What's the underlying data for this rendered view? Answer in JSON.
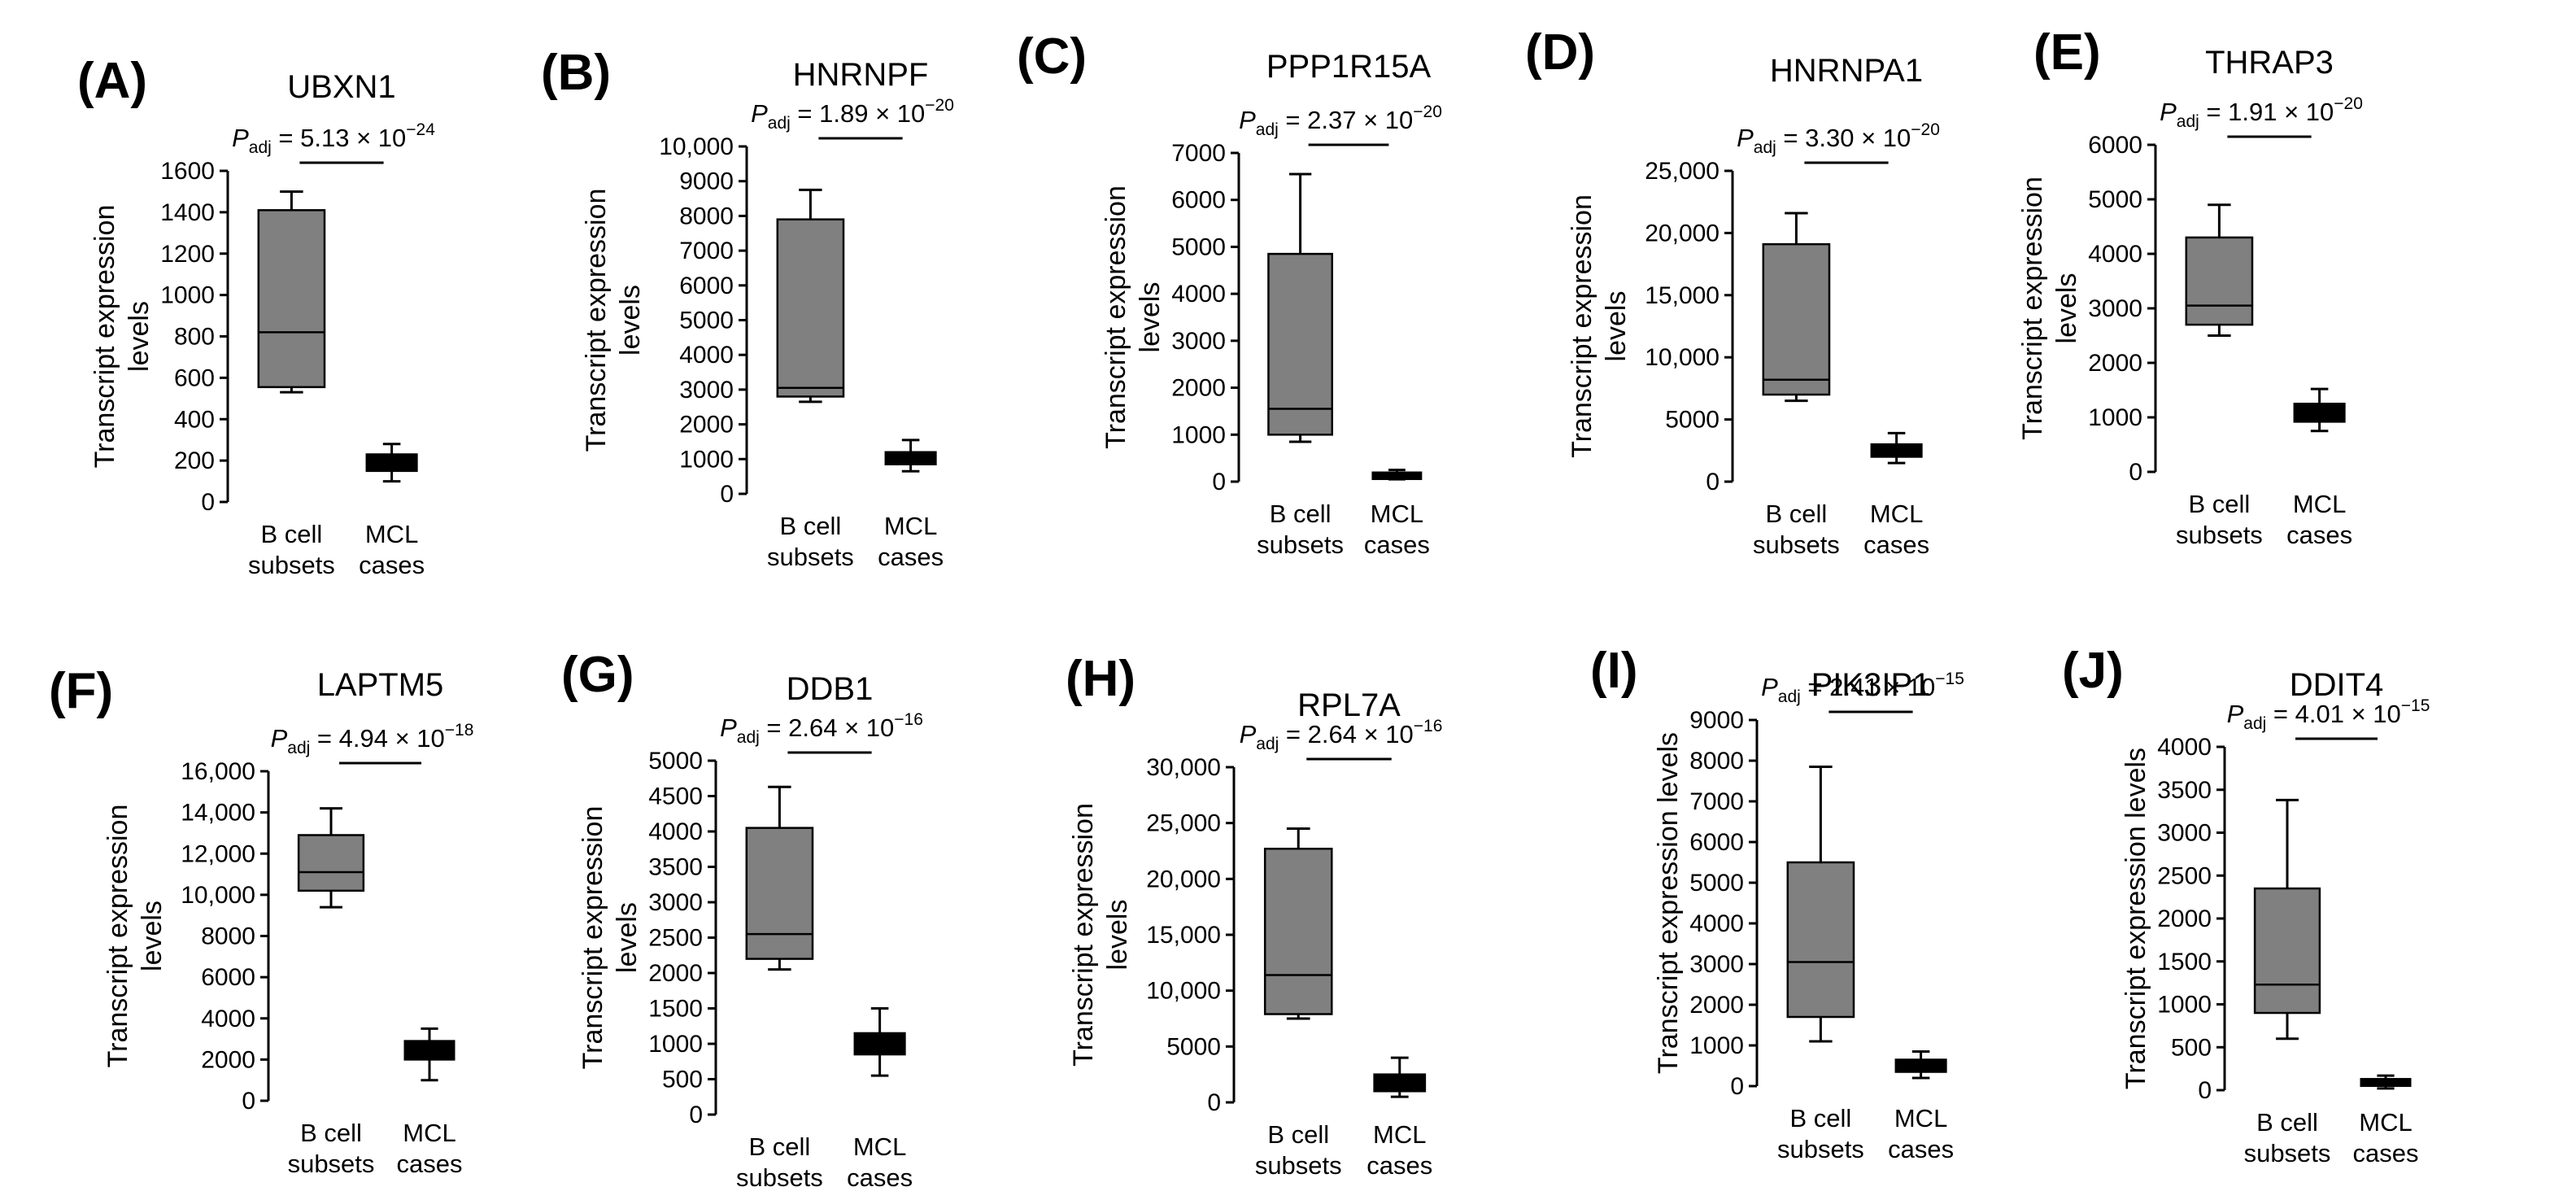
{
  "figure": {
    "ylabel_line1": "Transcript expression",
    "ylabel_line2": "levels",
    "categories": [
      [
        "B cell",
        "subsets"
      ],
      [
        "MCL",
        "cases"
      ]
    ],
    "box_colors": [
      "#808080",
      "#000000"
    ]
  },
  "chart_data": [
    {
      "type": "box",
      "panel": "(A)",
      "title": "UBXN1",
      "p_adj": "5.13 × 10−24",
      "ylim": [
        0,
        1600
      ],
      "yticks": [
        "0",
        "200",
        "400",
        "600",
        "800",
        "1000",
        "1200",
        "1400",
        "1600"
      ],
      "ylabel_lines": 2,
      "series": [
        {
          "name": "B cell subsets",
          "min": 530,
          "q1": 555,
          "median": 820,
          "q3": 1410,
          "max": 1500
        },
        {
          "name": "MCL cases",
          "min": 100,
          "q1": 150,
          "median": 190,
          "q3": 230,
          "max": 280
        }
      ]
    },
    {
      "type": "box",
      "panel": "(B)",
      "title": "HNRNPF",
      "p_adj": "1.89 × 10−20",
      "ylim": [
        0,
        10000
      ],
      "yticks": [
        "0",
        "1000",
        "2000",
        "3000",
        "4000",
        "5000",
        "6000",
        "7000",
        "8000",
        "9000",
        "10,000"
      ],
      "ylabel_lines": 2,
      "series": [
        {
          "name": "B cell subsets",
          "min": 2650,
          "q1": 2800,
          "median": 3050,
          "q3": 7900,
          "max": 8750
        },
        {
          "name": "MCL cases",
          "min": 650,
          "q1": 850,
          "median": 1000,
          "q3": 1200,
          "max": 1550
        }
      ]
    },
    {
      "type": "box",
      "panel": "(C)",
      "title": "PPP1R15A",
      "p_adj": "2.37 × 10−20",
      "ylim": [
        0,
        7000
      ],
      "yticks": [
        "0",
        "1000",
        "2000",
        "3000",
        "4000",
        "5000",
        "6000",
        "7000"
      ],
      "ylabel_lines": 2,
      "series": [
        {
          "name": "B cell subsets",
          "min": 850,
          "q1": 1000,
          "median": 1550,
          "q3": 4850,
          "max": 6550
        },
        {
          "name": "MCL cases",
          "min": 50,
          "q1": 80,
          "median": 120,
          "q3": 170,
          "max": 250
        }
      ]
    },
    {
      "type": "box",
      "panel": "(D)",
      "title": "HNRNPA1",
      "p_adj": "3.30 × 10−20",
      "ylim": [
        0,
        25000
      ],
      "yticks": [
        "0",
        "5000",
        "10,000",
        "15,000",
        "20,000",
        "25,000"
      ],
      "ylabel_lines": 2,
      "series": [
        {
          "name": "B cell subsets",
          "min": 6500,
          "q1": 7000,
          "median": 8200,
          "q3": 19100,
          "max": 21600
        },
        {
          "name": "MCL cases",
          "min": 1500,
          "q1": 2000,
          "median": 2400,
          "q3": 3000,
          "max": 3900
        }
      ]
    },
    {
      "type": "box",
      "panel": "(E)",
      "title": "THRAP3",
      "p_adj": "1.91 × 10−20",
      "ylim": [
        0,
        6000
      ],
      "yticks": [
        "0",
        "1000",
        "2000",
        "3000",
        "4000",
        "5000",
        "6000"
      ],
      "ylabel_lines": 2,
      "series": [
        {
          "name": "B cell subsets",
          "min": 2500,
          "q1": 2700,
          "median": 3050,
          "q3": 4300,
          "max": 4900
        },
        {
          "name": "MCL cases",
          "min": 750,
          "q1": 920,
          "median": 1100,
          "q3": 1250,
          "max": 1520
        }
      ]
    },
    {
      "type": "box",
      "panel": "(F)",
      "title": "LAPTM5",
      "p_adj": "4.94 × 10−18",
      "ylim": [
        0,
        16000
      ],
      "yticks": [
        "0",
        "2000",
        "4000",
        "6000",
        "8000",
        "10,000",
        "12,000",
        "14,000",
        "16,000"
      ],
      "ylabel_lines": 2,
      "series": [
        {
          "name": "B cell subsets",
          "min": 9400,
          "q1": 10200,
          "median": 11100,
          "q3": 12900,
          "max": 14200
        },
        {
          "name": "MCL cases",
          "min": 1000,
          "q1": 2000,
          "median": 2400,
          "q3": 2900,
          "max": 3500
        }
      ]
    },
    {
      "type": "box",
      "panel": "(G)",
      "title": "DDB1",
      "p_adj": "2.64 × 10−16",
      "ylim": [
        0,
        5000
      ],
      "yticks": [
        "0",
        "500",
        "1000",
        "1500",
        "2000",
        "2500",
        "3000",
        "3500",
        "4000",
        "4500",
        "5000"
      ],
      "ylabel_lines": 2,
      "series": [
        {
          "name": "B cell subsets",
          "min": 2050,
          "q1": 2200,
          "median": 2550,
          "q3": 4050,
          "max": 4630
        },
        {
          "name": "MCL cases",
          "min": 550,
          "q1": 850,
          "median": 1000,
          "q3": 1150,
          "max": 1500
        }
      ]
    },
    {
      "type": "box",
      "panel": "(H)",
      "title": "RPL7A",
      "p_adj": "2.64 × 10−16",
      "ylim": [
        0,
        30000
      ],
      "yticks": [
        "0",
        "5000",
        "10,000",
        "15,000",
        "20,000",
        "25,000",
        "30,000"
      ],
      "ylabel_lines": 2,
      "series": [
        {
          "name": "B cell subsets",
          "min": 7500,
          "q1": 7900,
          "median": 11400,
          "q3": 22700,
          "max": 24500
        },
        {
          "name": "MCL cases",
          "min": 500,
          "q1": 1000,
          "median": 1700,
          "q3": 2500,
          "max": 4000
        }
      ]
    },
    {
      "type": "box",
      "panel": "(I)",
      "title": "PIK3IP1",
      "p_adj": "2.41 × 10−15",
      "ylim": [
        0,
        9000
      ],
      "yticks": [
        "0",
        "1000",
        "2000",
        "3000",
        "4000",
        "5000",
        "6000",
        "7000",
        "8000",
        "9000"
      ],
      "ylabel_lines": 1,
      "series": [
        {
          "name": "B cell subsets",
          "min": 1100,
          "q1": 1700,
          "median": 3050,
          "q3": 5500,
          "max": 7850
        },
        {
          "name": "MCL cases",
          "min": 200,
          "q1": 350,
          "median": 500,
          "q3": 650,
          "max": 850
        }
      ]
    },
    {
      "type": "box",
      "panel": "(J)",
      "title": "DDIT4",
      "p_adj": "4.01 × 10−15",
      "ylim": [
        0,
        4000
      ],
      "yticks": [
        "0",
        "500",
        "1000",
        "1500",
        "2000",
        "2500",
        "3000",
        "3500",
        "4000"
      ],
      "ylabel_lines": 1,
      "series": [
        {
          "name": "B cell subsets",
          "min": 600,
          "q1": 900,
          "median": 1230,
          "q3": 2350,
          "max": 3380
        },
        {
          "name": "MCL cases",
          "min": 20,
          "q1": 50,
          "median": 90,
          "q3": 130,
          "max": 170
        }
      ]
    }
  ]
}
